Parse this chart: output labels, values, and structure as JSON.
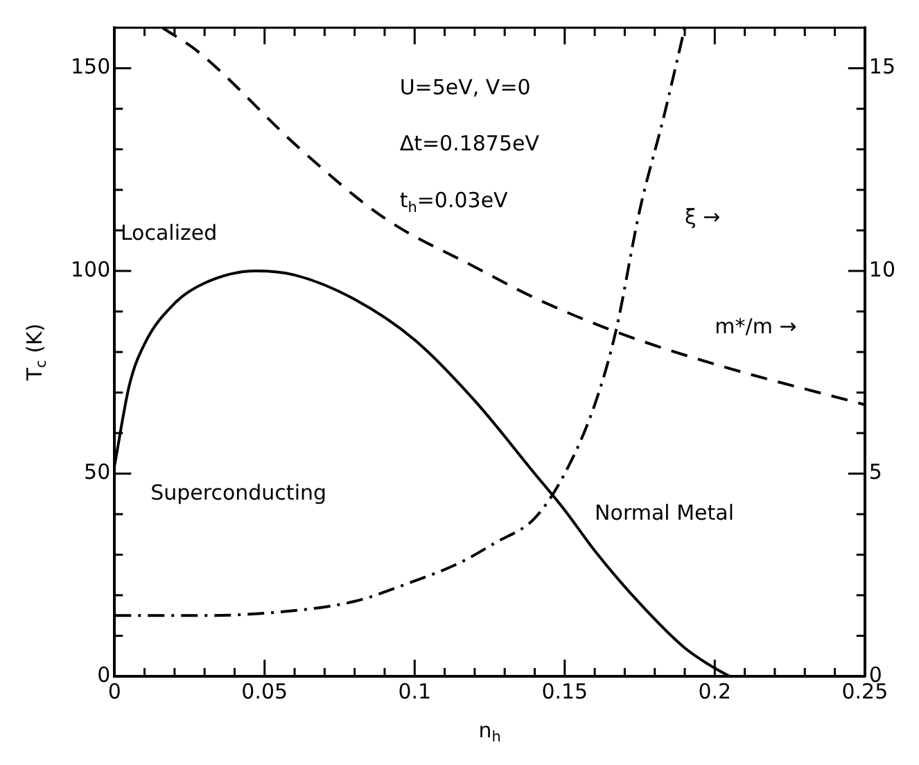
{
  "chart_data": {
    "type": "line",
    "xlabel": "n$_{h}$",
    "ylabel": "T$_{c}$ (K)",
    "xlim": [
      0,
      0.25
    ],
    "ylim": [
      0,
      160
    ],
    "y2lim": [
      0,
      16
    ],
    "xticks": [
      0,
      {
        "value": 0.01,
        "label": null
      },
      {
        "value": 0.02,
        "label": null
      },
      {
        "value": 0.03,
        "label": null
      },
      {
        "value": 0.04,
        "label": null
      },
      0.05,
      {
        "value": 0.06,
        "label": null
      },
      {
        "value": 0.07,
        "label": null
      },
      {
        "value": 0.08,
        "label": null
      },
      {
        "value": 0.09,
        "label": null
      },
      0.1,
      {
        "value": 0.11,
        "label": null
      },
      {
        "value": 0.12,
        "label": null
      },
      {
        "value": 0.13,
        "label": null
      },
      {
        "value": 0.14,
        "label": null
      },
      0.15,
      {
        "value": 0.16,
        "label": null
      },
      {
        "value": 0.17,
        "label": null
      },
      {
        "value": 0.18,
        "label": null
      },
      {
        "value": 0.19,
        "label": null
      },
      0.2,
      {
        "value": 0.21,
        "label": null
      },
      {
        "value": 0.22,
        "label": null
      },
      {
        "value": 0.23,
        "label": null
      },
      {
        "value": 0.24,
        "label": null
      },
      0.25
    ],
    "yticks": [
      0,
      {
        "value": 10,
        "label": null
      },
      {
        "value": 20,
        "label": null
      },
      {
        "value": 30,
        "label": null
      },
      {
        "value": 40,
        "label": null
      },
      50,
      {
        "value": 60,
        "label": null
      },
      {
        "value": 70,
        "label": null
      },
      {
        "value": 80,
        "label": null
      },
      {
        "value": 90,
        "label": null
      },
      100,
      {
        "value": 110,
        "label": null
      },
      {
        "value": 120,
        "label": null
      },
      {
        "value": 130,
        "label": null
      },
      {
        "value": 140,
        "label": null
      },
      150
    ],
    "y2ticks": [
      0,
      {
        "value": 1,
        "label": null
      },
      {
        "value": 2,
        "label": null
      },
      {
        "value": 3,
        "label": null
      },
      {
        "value": 4,
        "label": null
      },
      5,
      {
        "value": 6,
        "label": null
      },
      {
        "value": 7,
        "label": null
      },
      {
        "value": 8,
        "label": null
      },
      {
        "value": 9,
        "label": null
      },
      10,
      {
        "value": 11,
        "label": null
      },
      {
        "value": 12,
        "label": null
      },
      {
        "value": 13,
        "label": null
      },
      {
        "value": 14,
        "label": null
      },
      15
    ],
    "grid": false,
    "legend": false,
    "marker": "none",
    "series": [
      {
        "color": "#000000",
        "line_style": "solid",
        "x": [
          0,
          0.005,
          0.01,
          0.02,
          0.03,
          0.047,
          0.06,
          0.08,
          0.1,
          0.12,
          0.14,
          0.15,
          0.16,
          0.175,
          0.19,
          0.2,
          0.205
        ],
        "values": [
          52,
          72,
          82,
          92,
          97,
          100,
          99,
          93,
          83,
          68,
          50,
          41,
          31,
          18,
          7,
          2,
          0
        ]
      },
      {
        "color": "#000000",
        "line_style": "dashed",
        "axis": "y2",
        "x": [
          0.016,
          0.028,
          0.062,
          0.09,
          0.12,
          0.141,
          0.167,
          0.2,
          0.25
        ],
        "values": [
          16,
          15.4,
          13,
          11.3,
          10.1,
          9.3,
          8.5,
          7.7,
          6.7
        ]
      },
      {
        "color": "#000000",
        "line_style": "dashdot",
        "axis": "y2",
        "x": [
          0,
          0.03,
          0.054,
          0.08,
          0.097,
          0.115,
          0.127,
          0.14,
          0.15,
          0.16,
          0.167,
          0.175,
          0.183,
          0.19
        ],
        "values": [
          1.5,
          1.5,
          1.58,
          1.85,
          2.27,
          2.8,
          3.3,
          3.9,
          5,
          6.7,
          8.5,
          11.5,
          13.8,
          16
        ]
      }
    ],
    "annotations": [
      "U=5eV, V=0",
      "Δt=0.1875eV",
      "t$_{h}$=0.03eV",
      "Localized",
      "Superconducting",
      "Normal Metal",
      "ξ →",
      "m*/m →"
    ]
  }
}
